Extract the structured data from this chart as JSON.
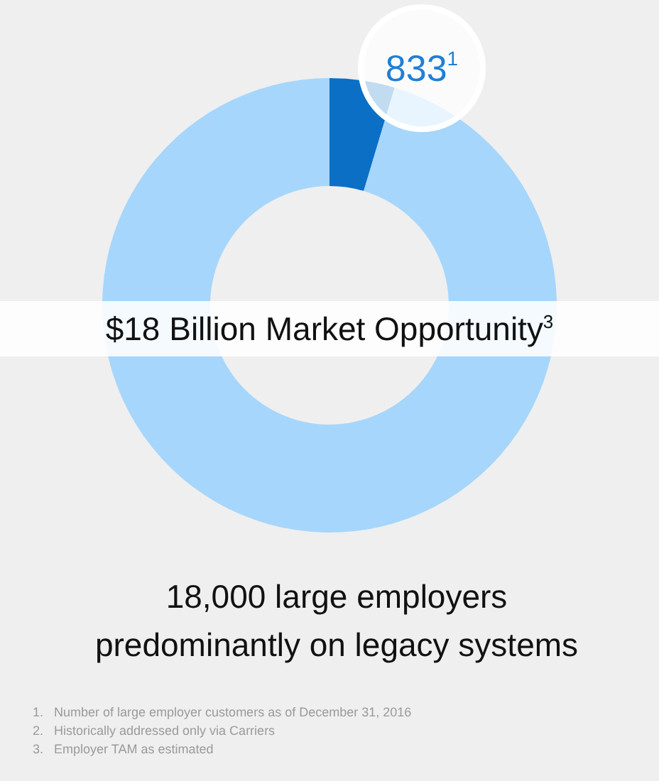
{
  "chart_data": {
    "type": "donut",
    "title": "$18 Billion Market Opportunity$^{3}$",
    "categories": [
      null,
      null
    ],
    "values": [
      833,
      17167
    ],
    "colors": [
      "#0b6fc6",
      "#a6d6fb"
    ],
    "value_labels": [
      "833$^{1}$",
      null
    ],
    "annotations": [
      "18,000 large employers\npredominantly on legacy systems",
      "1.   Number of large employer customers as of December 31, 2016",
      "2.   Historically addressed only via Carriers",
      "3.   Employer TAM as estimated"
    ]
  }
}
